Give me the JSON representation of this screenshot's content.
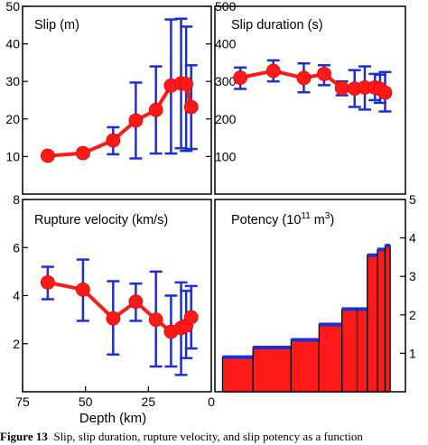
{
  "chart_data": [
    {
      "type": "line",
      "title": "Slip (m)",
      "xlim": [
        75,
        0
      ],
      "ylim": [
        0,
        50
      ],
      "yticks_left": [
        10,
        20,
        30,
        40,
        50
      ],
      "right_tick_labels": [
        "500",
        "400",
        "300",
        "200",
        "100"
      ],
      "right_tick_values": [
        50,
        40,
        30,
        20,
        10
      ],
      "points": [
        {
          "x": 65,
          "y": 10.2,
          "lo": 9.8,
          "hi": 10.6
        },
        {
          "x": 51,
          "y": 10.9,
          "lo": 10.1,
          "hi": 11.7
        },
        {
          "x": 39,
          "y": 14.3,
          "lo": 10.6,
          "hi": 17.8
        },
        {
          "x": 30,
          "y": 19.6,
          "lo": 9.5,
          "hi": 29.7
        },
        {
          "x": 22,
          "y": 22.4,
          "lo": 10.8,
          "hi": 34.0
        },
        {
          "x": 16,
          "y": 28.9,
          "lo": 10.8,
          "hi": 46.5
        },
        {
          "x": 12,
          "y": 29.5,
          "lo": 12.2,
          "hi": 46.7
        },
        {
          "x": 10,
          "y": 29.3,
          "lo": 11.5,
          "hi": 44.6
        },
        {
          "x": 8,
          "y": 23.2,
          "lo": 12.0,
          "hi": 34.3
        }
      ]
    },
    {
      "type": "line",
      "title": "Slip duration (s)",
      "xlim": [
        75,
        0
      ],
      "ylim": [
        0,
        50
      ],
      "points": [
        {
          "x": 65,
          "y": 31.0,
          "lo": 28.0,
          "hi": 33.7
        },
        {
          "x": 52,
          "y": 32.8,
          "lo": 30.0,
          "hi": 35.6
        },
        {
          "x": 40,
          "y": 30.9,
          "lo": 27.1,
          "hi": 34.8
        },
        {
          "x": 32,
          "y": 32.0,
          "lo": 29.0,
          "hi": 34.3
        },
        {
          "x": 25,
          "y": 28.2,
          "lo": 26.3,
          "hi": 30.0
        },
        {
          "x": 20,
          "y": 28.1,
          "lo": 23.2,
          "hi": 33.0
        },
        {
          "x": 16,
          "y": 28.4,
          "lo": 22.5,
          "hi": 34.0
        },
        {
          "x": 12,
          "y": 28.4,
          "lo": 25.0,
          "hi": 32.0
        },
        {
          "x": 10,
          "y": 28.0,
          "lo": 24.3,
          "hi": 31.8
        },
        {
          "x": 8,
          "y": 27.0,
          "lo": 22.0,
          "hi": 32.5
        }
      ]
    },
    {
      "type": "line",
      "title": "Rupture velocity (km/s)",
      "xlabel": "Depth (km)",
      "xlim": [
        75,
        0
      ],
      "ylim": [
        0,
        8
      ],
      "yticks_left": [
        2,
        4,
        6,
        8
      ],
      "xticks": [
        75,
        50,
        25,
        0
      ],
      "points": [
        {
          "x": 65,
          "y": 4.55,
          "lo": 3.85,
          "hi": 5.2
        },
        {
          "x": 51,
          "y": 4.25,
          "lo": 2.95,
          "hi": 5.5
        },
        {
          "x": 39,
          "y": 3.05,
          "lo": 1.55,
          "hi": 4.6
        },
        {
          "x": 30,
          "y": 3.75,
          "lo": 2.95,
          "hi": 4.5
        },
        {
          "x": 22,
          "y": 3.0,
          "lo": 1.05,
          "hi": 5.0
        },
        {
          "x": 16,
          "y": 2.5,
          "lo": 1.05,
          "hi": 4.0
        },
        {
          "x": 12,
          "y": 2.65,
          "lo": 0.7,
          "hi": 4.55
        },
        {
          "x": 10,
          "y": 2.75,
          "lo": 1.4,
          "hi": 4.2
        },
        {
          "x": 8,
          "y": 3.1,
          "lo": 1.8,
          "hi": 4.4
        }
      ]
    },
    {
      "type": "bar",
      "title": "Potency (1011 m3)",
      "title_main": "Potency (10",
      "title_exp1": "11",
      "title_mid": " m",
      "title_exp2": "3",
      "title_end": ")",
      "xlim": [
        75,
        0
      ],
      "ylim": [
        0,
        5
      ],
      "right_tick_labels": [
        "5",
        "4",
        "3",
        "2",
        "1"
      ],
      "right_tick_values": [
        5,
        4,
        3,
        2,
        1
      ],
      "bars": [
        {
          "x0": 72,
          "x1": 60,
          "value": 0.9
        },
        {
          "x0": 60,
          "x1": 45,
          "value": 1.15
        },
        {
          "x0": 45,
          "x1": 34,
          "value": 1.35
        },
        {
          "x0": 34,
          "x1": 25,
          "value": 1.75
        },
        {
          "x0": 25,
          "x1": 19,
          "value": 2.15
        },
        {
          "x0": 19,
          "x1": 15,
          "value": 2.15
        },
        {
          "x0": 15,
          "x1": 11,
          "value": 3.55
        },
        {
          "x0": 11,
          "x1": 8,
          "value": 3.7
        },
        {
          "x0": 8,
          "x1": 6,
          "value": 3.8
        }
      ]
    }
  ],
  "caption": {
    "label": "Figure 13",
    "text": "Slip, slip duration, rupture velocity, and slip potency as a function"
  }
}
